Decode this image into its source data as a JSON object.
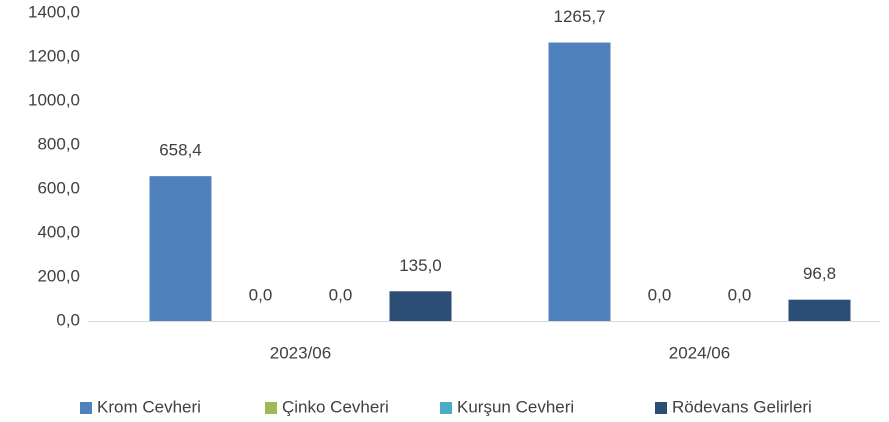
{
  "chart_data": {
    "type": "bar",
    "categories": [
      "2023/06",
      "2024/06"
    ],
    "series": [
      {
        "name": "Krom Cevheri",
        "color": "#4f81bd",
        "values": [
          658.4,
          1265.7
        ],
        "value_labels": [
          "658,4",
          "1265,7"
        ]
      },
      {
        "name": "Çinko Cevheri",
        "color": "#9bbb59",
        "values": [
          0.0,
          0.0
        ],
        "value_labels": [
          "0,0",
          "0,0"
        ]
      },
      {
        "name": "Kurşun Cevheri",
        "color": "#4bacc6",
        "values": [
          0.0,
          0.0
        ],
        "value_labels": [
          "0,0",
          "0,0"
        ]
      },
      {
        "name": "Rödevans Gelirleri",
        "color": "#2c4d75",
        "values": [
          135.0,
          96.8
        ],
        "value_labels": [
          "135,0",
          "96,8"
        ]
      }
    ],
    "ylim": [
      0,
      1400
    ],
    "yticks": [
      {
        "value": 0,
        "label": "0,0"
      },
      {
        "value": 200,
        "label": "200,0"
      },
      {
        "value": 400,
        "label": "400,0"
      },
      {
        "value": 600,
        "label": "600,0"
      },
      {
        "value": 800,
        "label": "800,0"
      },
      {
        "value": 1000,
        "label": "1000,0"
      },
      {
        "value": 1200,
        "label": "1200,0"
      },
      {
        "value": 1400,
        "label": "1400,0"
      }
    ],
    "grid": false,
    "legend": "bottom"
  }
}
